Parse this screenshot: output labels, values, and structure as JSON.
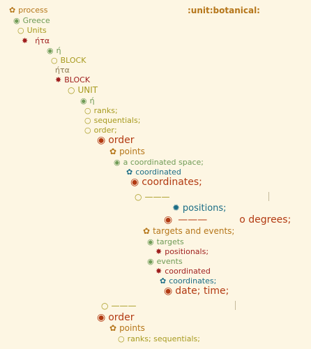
{
  "header": {
    "tag": ":unit:botanical:"
  },
  "symbols": {
    "flower": "✿",
    "dot": "◉",
    "ring": "○",
    "star": "✸",
    "starburst": "✹"
  },
  "tree": [
    {
      "sym": "flower",
      "label": "process"
    },
    {
      "sym": "dot",
      "label": "Greece"
    },
    {
      "sym": "ring",
      "label": "Units"
    },
    {
      "sym": "star",
      "label": "ήτα"
    },
    {
      "sym": "dot",
      "label": "ή"
    },
    {
      "sym": "ring",
      "label": "BLOCK"
    },
    {
      "sym": "",
      "label": "ήτα"
    },
    {
      "sym": "star",
      "label": "BLOCK"
    },
    {
      "sym": "ring",
      "label": "UNIT"
    },
    {
      "sym": "dot",
      "label": "ή"
    },
    {
      "sym": "ring",
      "label": "ranks;"
    },
    {
      "sym": "ring",
      "label": "sequentials;"
    },
    {
      "sym": "ring",
      "label": "order;"
    },
    {
      "sym": "dot",
      "label": "order"
    },
    {
      "sym": "flower",
      "label": "points"
    },
    {
      "sym": "dot",
      "label": "a coordinated space;"
    },
    {
      "sym": "flower",
      "label": "coordinated"
    },
    {
      "sym": "dot",
      "label": "coordinates;"
    },
    {
      "sym": "ring",
      "label": "———"
    },
    {
      "sym": "starburst",
      "label": "positions;"
    },
    {
      "sym": "dot",
      "label": "———",
      "trail": "o degrees;"
    },
    {
      "sym": "flower",
      "label": "targets and events;"
    },
    {
      "sym": "dot",
      "label": "targets"
    },
    {
      "sym": "star",
      "label": "positionals;"
    },
    {
      "sym": "dot",
      "label": "events"
    },
    {
      "sym": "star",
      "label": "coordinated"
    },
    {
      "sym": "flower",
      "label": "coordinates;"
    },
    {
      "sym": "dot",
      "label": "date; time;"
    },
    {
      "sym": "ring",
      "label": "———"
    },
    {
      "sym": "dot",
      "label": "order"
    },
    {
      "sym": "flower",
      "label": "points"
    },
    {
      "sym": "ring",
      "label": "ranks; sequentials;"
    }
  ]
}
